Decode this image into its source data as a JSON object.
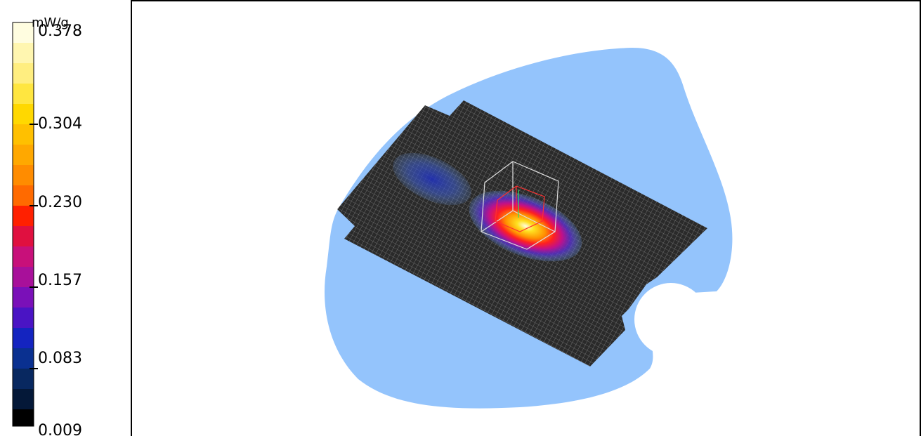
{
  "colorbar": {
    "unit": "mW/g",
    "ticks": [
      "0.378",
      "0.304",
      "0.230",
      "0.157",
      "0.083",
      "0.009"
    ]
  }
}
